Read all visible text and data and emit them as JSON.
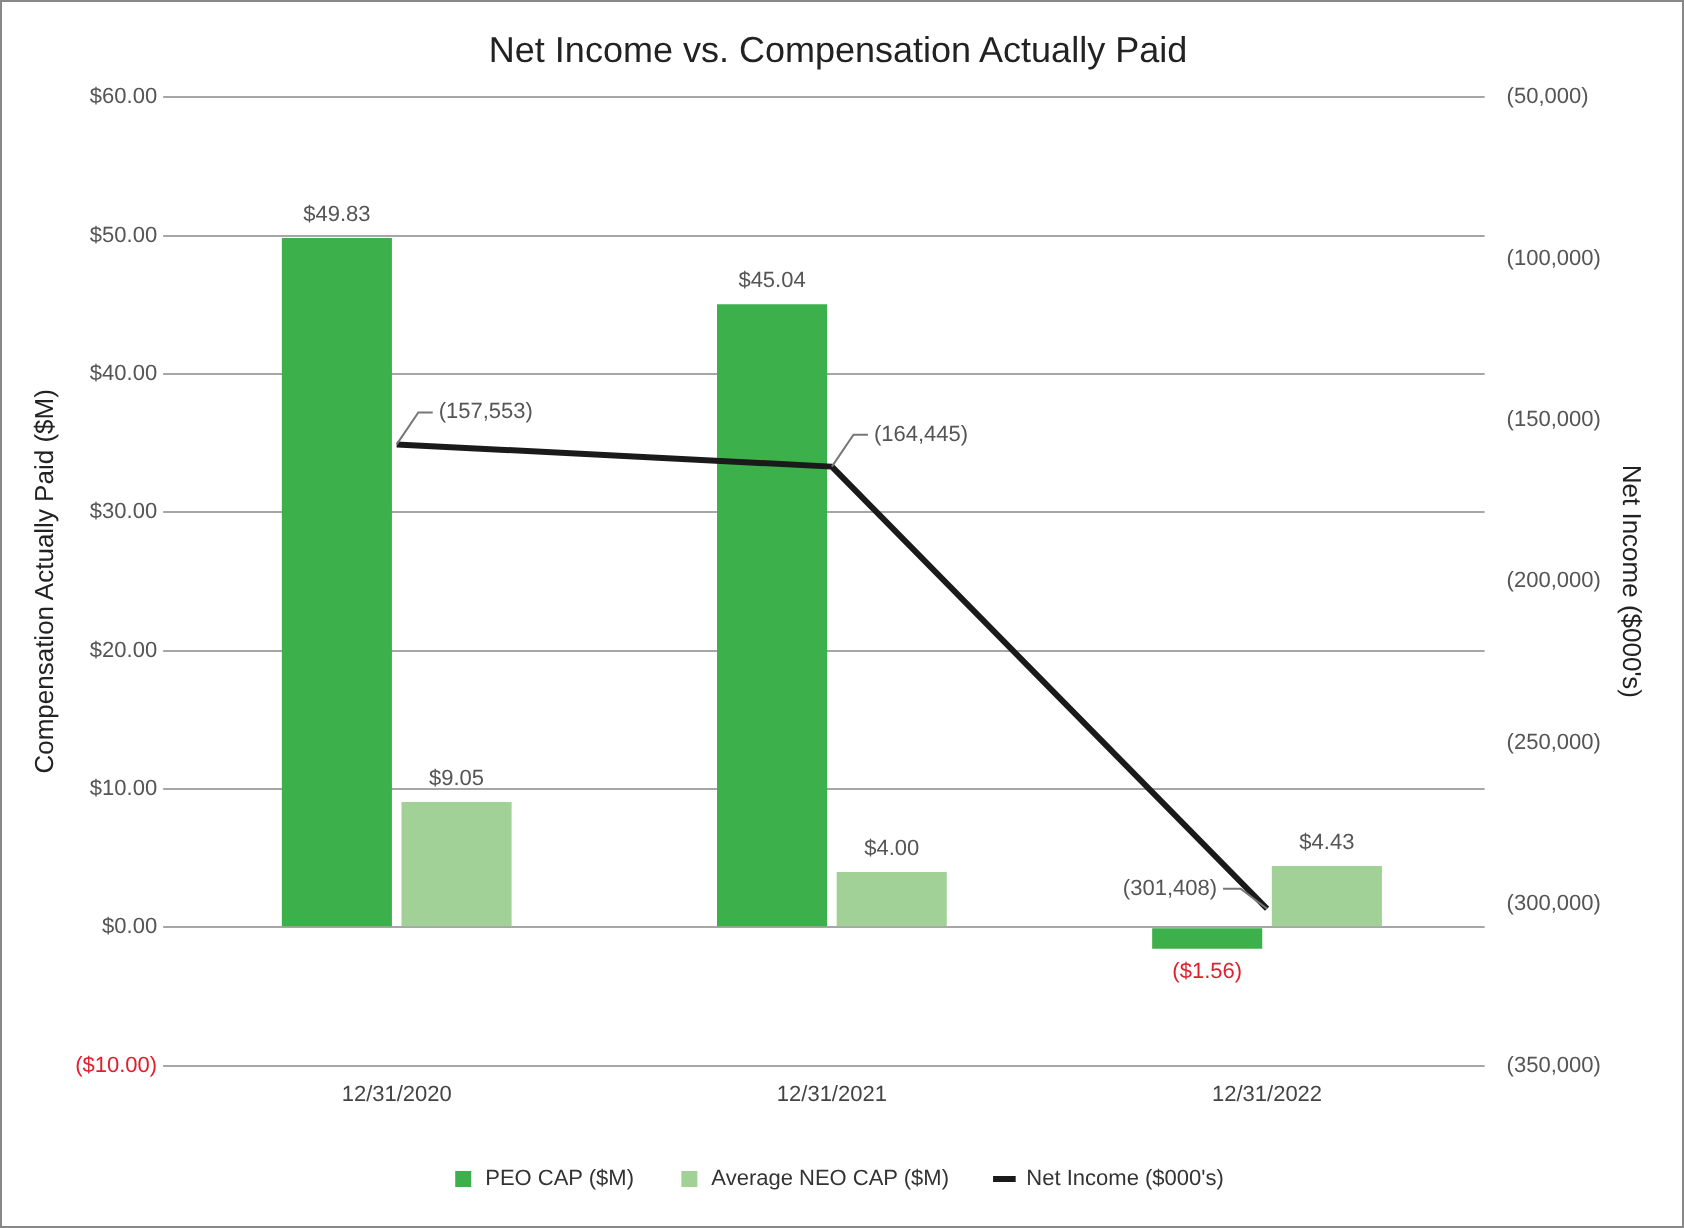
{
  "chart_data": {
    "type": "bar",
    "title": "Net Income vs. Compensation Actually Paid",
    "ylabel": "Compensation Actually Paid ($M)",
    "y2label": "Net Income ($000's)",
    "categories": [
      "12/31/2020",
      "12/31/2021",
      "12/31/2022"
    ],
    "series": [
      {
        "name": "PEO CAP ($M)",
        "color": "#3cb04b",
        "values": [
          49.83,
          45.04,
          -1.56
        ],
        "value_labels": [
          "$49.83",
          "$45.04",
          "($1.56)"
        ]
      },
      {
        "name": "Average NEO CAP ($M)",
        "color": "#a1d196",
        "values": [
          9.05,
          4.0,
          4.43
        ],
        "value_labels": [
          "$9.05",
          "$4.00",
          "$4.43"
        ]
      },
      {
        "name": "Net Income ($000's)",
        "type": "line",
        "axis": "y2",
        "color": "#1a1a1a",
        "values": [
          -157553,
          -164445,
          -301408
        ],
        "value_labels": [
          "(157,553)",
          "(164,445)",
          "(301,408)"
        ]
      }
    ],
    "ylim": [
      -10,
      60
    ],
    "yticks": [
      {
        "value": -10,
        "label": "($10.00)"
      },
      {
        "value": 0,
        "label": "$0.00"
      },
      {
        "value": 10,
        "label": "$10.00"
      },
      {
        "value": 20,
        "label": "$20.00"
      },
      {
        "value": 30,
        "label": "$30.00"
      },
      {
        "value": 40,
        "label": "$40.00"
      },
      {
        "value": 50,
        "label": "$50.00"
      },
      {
        "value": 60,
        "label": "$60.00"
      }
    ],
    "y2lim": [
      -350000,
      -50000
    ],
    "y2ticks": [
      {
        "value": -350000,
        "label": "(350,000)"
      },
      {
        "value": -300000,
        "label": "(300,000)"
      },
      {
        "value": -250000,
        "label": "(250,000)"
      },
      {
        "value": -200000,
        "label": "(200,000)"
      },
      {
        "value": -150000,
        "label": "(150,000)"
      },
      {
        "value": -100000,
        "label": "(100,000)"
      },
      {
        "value": -50000,
        "label": "(50,000)"
      }
    ],
    "grid": "y",
    "legend": "bottom",
    "marker": "none",
    "line_style": "solid"
  }
}
